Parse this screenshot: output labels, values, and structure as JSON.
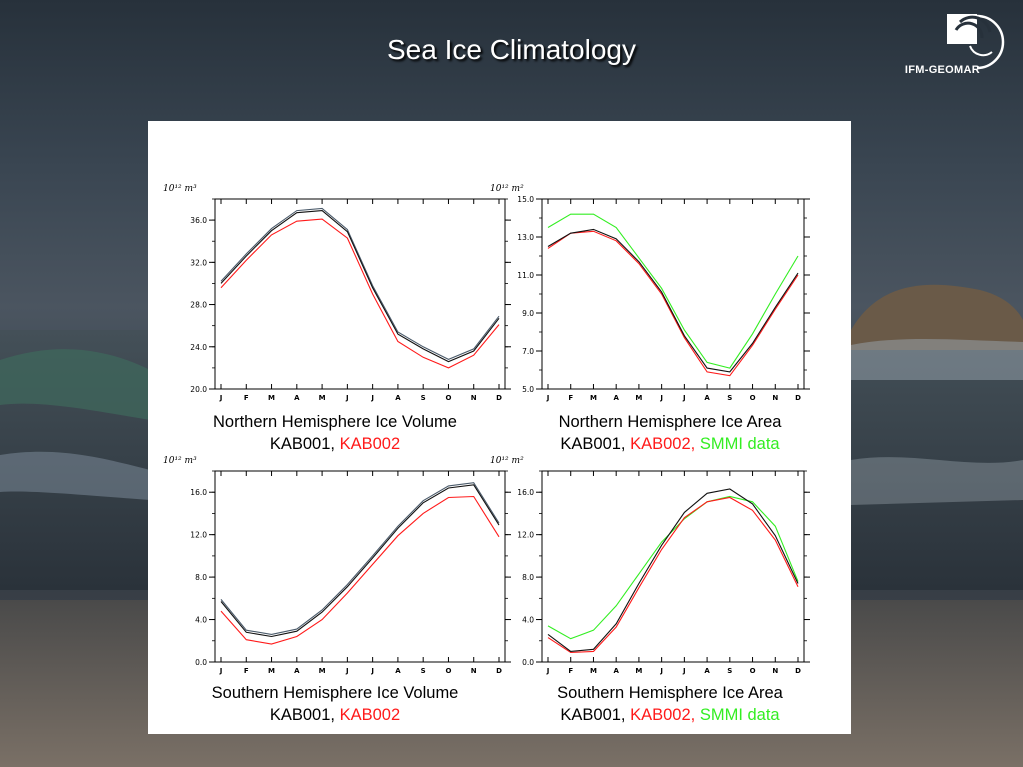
{
  "slide": {
    "title": "Sea Ice Climatology",
    "logo_text": "IFM-GEOMAR"
  },
  "colors": {
    "kab001": "#111111",
    "kab002": "#ff1a1a",
    "smmi": "#33ee22",
    "second_line": "#4a5a6a"
  },
  "captions": [
    {
      "title": "Northern Hemisphere Ice Volume",
      "s1": "KAB001, ",
      "s2": "KAB002",
      "s3": ""
    },
    {
      "title": "Northern Hemisphere Ice Area",
      "s1": "KAB001, ",
      "s2": "KAB002, ",
      "s3": "SMMI data"
    },
    {
      "title": "Southern Hemisphere Ice Volume",
      "s1": "KAB001, ",
      "s2": "KAB002",
      "s3": ""
    },
    {
      "title": "Southern Hemisphere Ice Area",
      "s1": "KAB001, ",
      "s2": "KAB002, ",
      "s3": "SMMI data"
    }
  ],
  "chart_data": [
    {
      "type": "line",
      "unit_label": "10¹² m³",
      "categories": [
        "J",
        "F",
        "M",
        "A",
        "M",
        "J",
        "J",
        "A",
        "S",
        "O",
        "N",
        "D"
      ],
      "ylim": [
        20,
        38
      ],
      "yticks": [
        20,
        24,
        28,
        32,
        36
      ],
      "ytick_labels": [
        "20.0",
        "24.0",
        "28.0",
        "32.0",
        "36.0"
      ],
      "series": [
        {
          "color_key": "second_line",
          "values": [
            30.2,
            32.8,
            35.2,
            36.9,
            37.1,
            35.1,
            29.8,
            25.4,
            24.0,
            22.8,
            23.8,
            26.9
          ]
        },
        {
          "color_key": "kab002",
          "values": [
            29.6,
            32.2,
            34.6,
            35.9,
            36.1,
            34.3,
            29.0,
            24.5,
            23.0,
            22.0,
            23.2,
            26.1
          ]
        },
        {
          "color_key": "kab001",
          "values": [
            30.0,
            32.6,
            35.0,
            36.7,
            36.9,
            34.9,
            29.6,
            25.2,
            23.8,
            22.6,
            23.6,
            26.7
          ]
        }
      ]
    },
    {
      "type": "line",
      "unit_label": "10¹² m²",
      "categories": [
        "J",
        "F",
        "M",
        "A",
        "M",
        "J",
        "J",
        "A",
        "S",
        "O",
        "N",
        "D"
      ],
      "ylim": [
        5,
        15
      ],
      "yticks": [
        5,
        7,
        9,
        11,
        13,
        15
      ],
      "ytick_labels": [
        "5.0",
        "7.0",
        "9.0",
        "11.0",
        "13.0",
        "15.0"
      ],
      "series": [
        {
          "color_key": "smmi",
          "values": [
            13.5,
            14.2,
            14.2,
            13.5,
            11.9,
            10.3,
            8.1,
            6.4,
            6.1,
            7.9,
            10.0,
            12.0
          ]
        },
        {
          "color_key": "kab002",
          "values": [
            12.4,
            13.2,
            13.3,
            12.8,
            11.6,
            10.0,
            7.7,
            5.9,
            5.7,
            7.3,
            9.2,
            11.0
          ]
        },
        {
          "color_key": "kab001",
          "values": [
            12.5,
            13.2,
            13.4,
            12.9,
            11.7,
            10.1,
            7.8,
            6.1,
            5.9,
            7.4,
            9.3,
            11.1
          ]
        }
      ]
    },
    {
      "type": "line",
      "unit_label": "10¹² m³",
      "categories": [
        "J",
        "F",
        "M",
        "A",
        "M",
        "J",
        "J",
        "A",
        "S",
        "O",
        "N",
        "D"
      ],
      "ylim": [
        0,
        18
      ],
      "yticks": [
        0,
        4,
        8,
        12,
        16
      ],
      "ytick_labels": [
        "0.0",
        "4.0",
        "8.0",
        "12.0",
        "16.0"
      ],
      "series": [
        {
          "color_key": "second_line",
          "values": [
            5.9,
            3.0,
            2.6,
            3.1,
            4.9,
            7.3,
            10.0,
            12.8,
            15.2,
            16.6,
            16.9,
            13.1
          ]
        },
        {
          "color_key": "kab002",
          "values": [
            4.8,
            2.1,
            1.7,
            2.4,
            4.0,
            6.5,
            9.2,
            11.9,
            14.0,
            15.5,
            15.6,
            11.8
          ]
        },
        {
          "color_key": "kab001",
          "values": [
            5.7,
            2.8,
            2.4,
            2.9,
            4.7,
            7.1,
            9.8,
            12.6,
            15.0,
            16.4,
            16.7,
            12.9
          ]
        }
      ]
    },
    {
      "type": "line",
      "unit_label": "10¹² m²",
      "categories": [
        "J",
        "F",
        "M",
        "A",
        "M",
        "J",
        "J",
        "A",
        "S",
        "O",
        "N",
        "D"
      ],
      "ylim": [
        0,
        18
      ],
      "yticks": [
        0,
        4,
        8,
        12,
        16
      ],
      "ytick_labels": [
        "0.0",
        "4.0",
        "8.0",
        "12.0",
        "16.0"
      ],
      "series": [
        {
          "color_key": "smmi",
          "values": [
            3.4,
            2.2,
            3.0,
            5.3,
            8.3,
            11.3,
            13.5,
            15.1,
            15.6,
            15.1,
            12.8,
            7.6
          ]
        },
        {
          "color_key": "kab002",
          "values": [
            2.3,
            0.9,
            1.0,
            3.3,
            7.0,
            10.6,
            13.6,
            15.1,
            15.5,
            14.3,
            11.5,
            7.1
          ]
        },
        {
          "color_key": "kab001",
          "values": [
            2.6,
            1.0,
            1.2,
            3.6,
            7.4,
            11.0,
            14.1,
            15.9,
            16.3,
            14.9,
            11.9,
            7.4
          ]
        }
      ]
    }
  ]
}
